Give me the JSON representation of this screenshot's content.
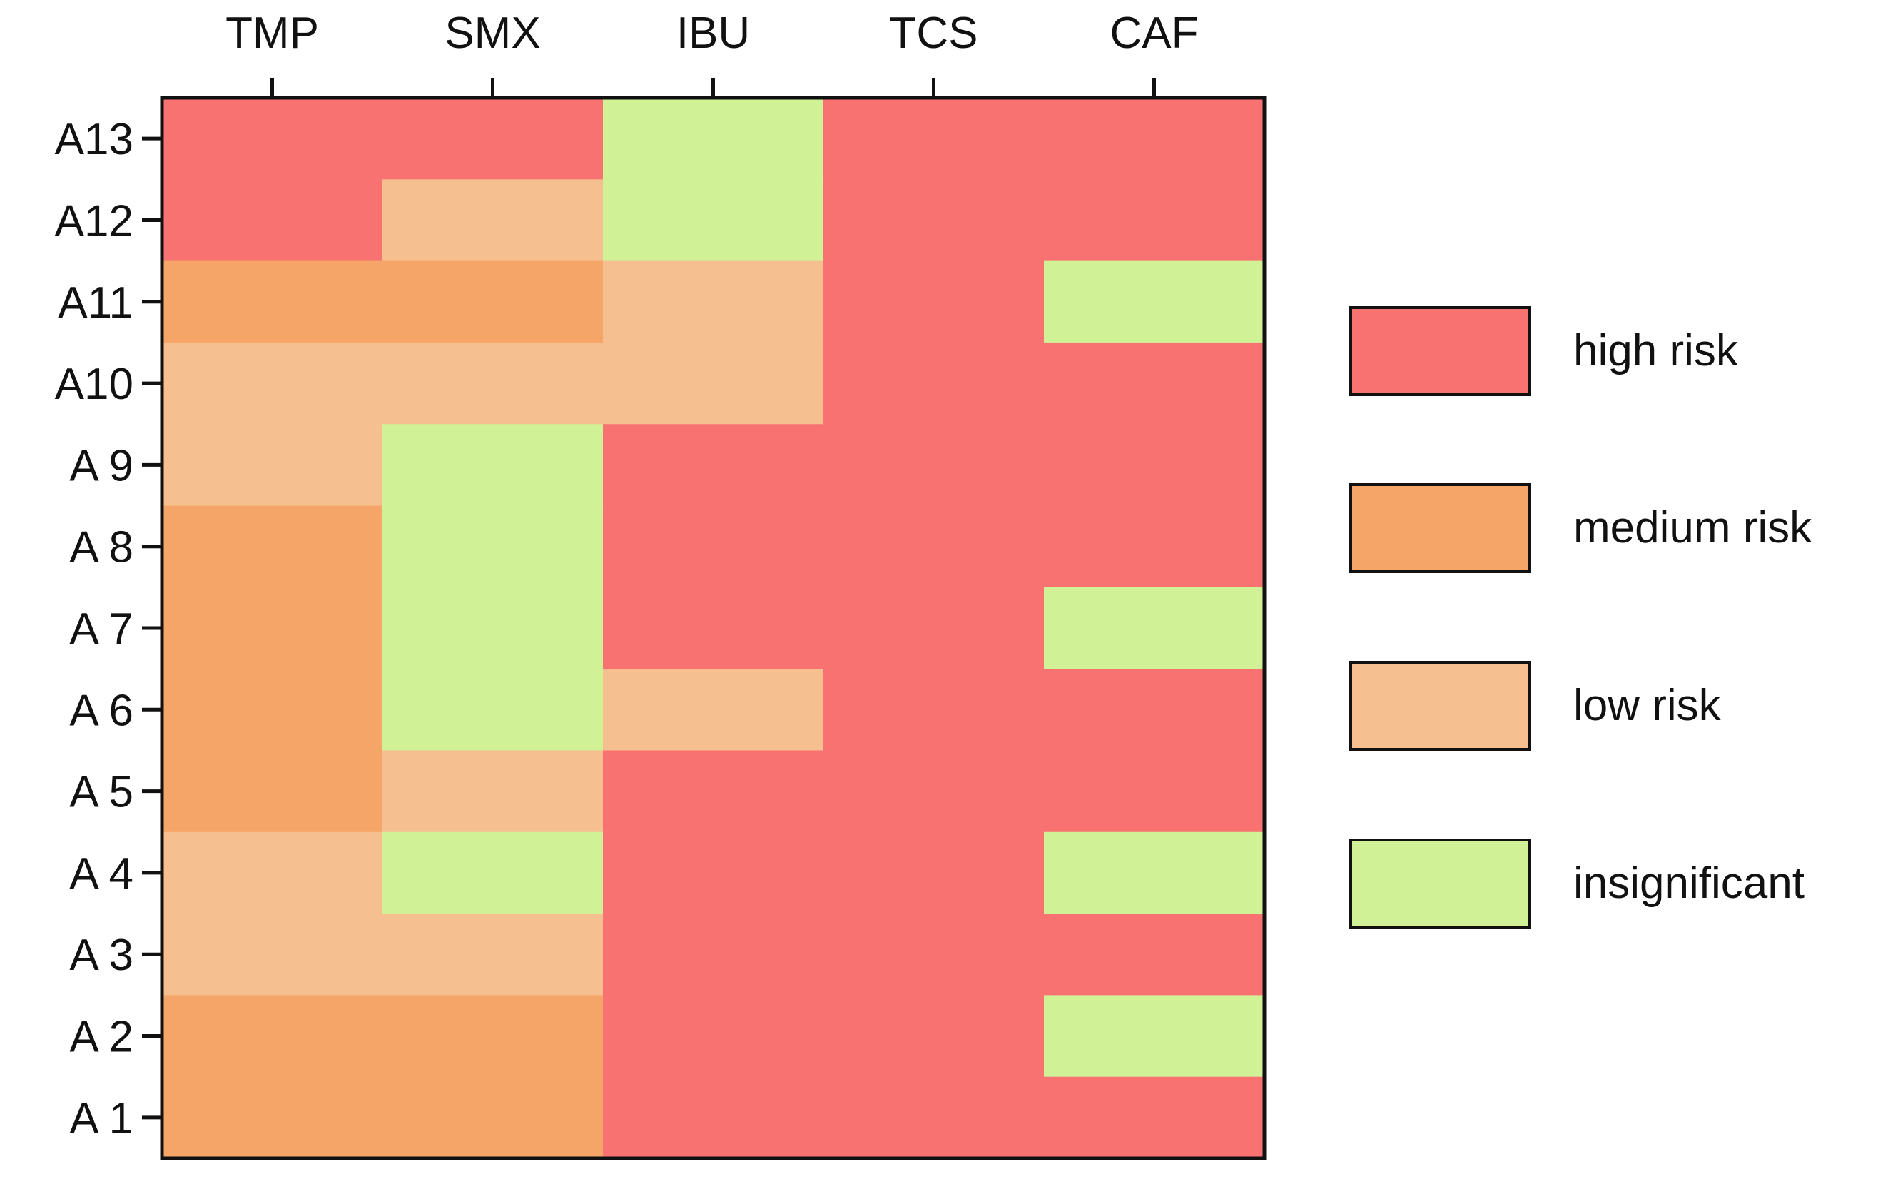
{
  "chart_data": {
    "type": "heatmap",
    "title": "",
    "xlabel": "",
    "ylabel": "",
    "x_categories": [
      "TMP",
      "SMX",
      "IBU",
      "TCS",
      "CAF"
    ],
    "y_categories": [
      "A 1",
      "A 2",
      "A 3",
      "A 4",
      "A 5",
      "A 6",
      "A 7",
      "A 8",
      "A 9",
      "A10",
      "A11",
      "A12",
      "A13"
    ],
    "levels": [
      {
        "key": "high",
        "label": "high risk",
        "color": "#f97272"
      },
      {
        "key": "medium",
        "label": "medium risk",
        "color": "#f4a567"
      },
      {
        "key": "low",
        "label": "low risk",
        "color": "#f6bf90"
      },
      {
        "key": "insignificant",
        "label": "insignificant",
        "color": "#d0f196"
      }
    ],
    "cells": [
      {
        "row": "A13",
        "values": [
          "high",
          "high",
          "insignificant",
          "high",
          "high"
        ]
      },
      {
        "row": "A12",
        "values": [
          "high",
          "low",
          "insignificant",
          "high",
          "high"
        ]
      },
      {
        "row": "A11",
        "values": [
          "medium",
          "medium",
          "low",
          "high",
          "insignificant"
        ]
      },
      {
        "row": "A10",
        "values": [
          "low",
          "low",
          "low",
          "high",
          "high"
        ]
      },
      {
        "row": "A 9",
        "values": [
          "low",
          "insignificant",
          "high",
          "high",
          "high"
        ]
      },
      {
        "row": "A 8",
        "values": [
          "medium",
          "insignificant",
          "high",
          "high",
          "high"
        ]
      },
      {
        "row": "A 7",
        "values": [
          "medium",
          "insignificant",
          "high",
          "high",
          "insignificant"
        ]
      },
      {
        "row": "A 6",
        "values": [
          "medium",
          "insignificant",
          "low",
          "high",
          "high"
        ]
      },
      {
        "row": "A 5",
        "values": [
          "medium",
          "low",
          "high",
          "high",
          "high"
        ]
      },
      {
        "row": "A 4",
        "values": [
          "low",
          "insignificant",
          "high",
          "high",
          "insignificant"
        ]
      },
      {
        "row": "A 3",
        "values": [
          "low",
          "low",
          "high",
          "high",
          "high"
        ]
      },
      {
        "row": "A 2",
        "values": [
          "medium",
          "medium",
          "high",
          "high",
          "insignificant"
        ]
      },
      {
        "row": "A 1",
        "values": [
          "medium",
          "medium",
          "high",
          "high",
          "high"
        ]
      }
    ],
    "legend_position": "right",
    "grid": false
  }
}
